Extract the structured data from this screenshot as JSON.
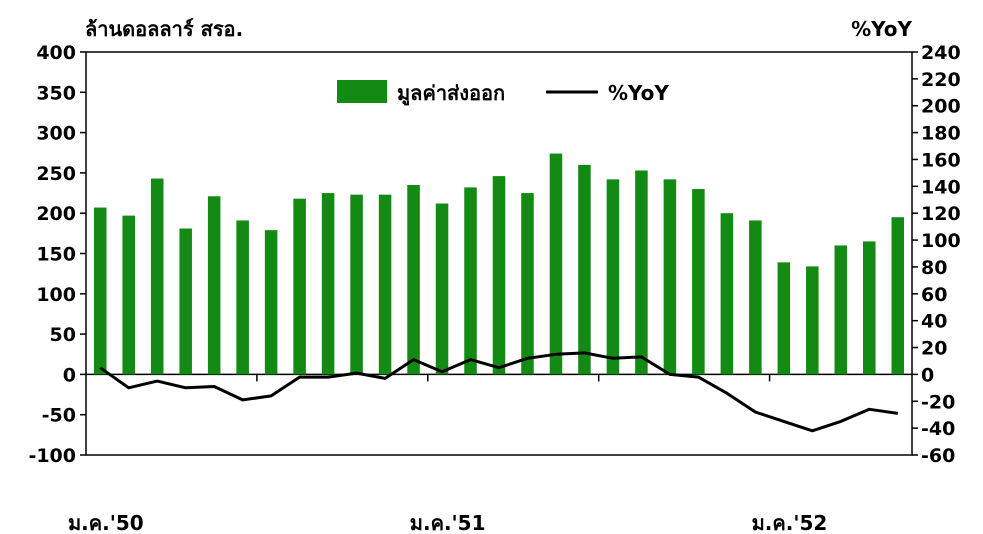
{
  "chart_data": {
    "type": "bar",
    "left_axis_unit": "ล้านดอลลาร์ สรอ.",
    "right_axis_unit": "%YoY",
    "left_ylim": [
      -100,
      400
    ],
    "left_ticks": [
      400,
      350,
      300,
      250,
      200,
      150,
      100,
      50,
      0,
      -50,
      -100
    ],
    "right_ylim": [
      -60,
      240
    ],
    "right_ticks": [
      240,
      220,
      200,
      180,
      160,
      140,
      120,
      100,
      80,
      60,
      40,
      20,
      0,
      -20,
      -40,
      -60
    ],
    "x_labels": [
      {
        "label": "ม.ค.'50",
        "index": 0
      },
      {
        "label": "ม.ค.'51",
        "index": 12
      },
      {
        "label": "ม.ค.'52",
        "index": 24
      }
    ],
    "legend_position": "top-center",
    "series": [
      {
        "name": "มูลค่าส่งออก",
        "type": "bar",
        "axis": "left",
        "color": "#138a13",
        "values": [
          207,
          197,
          243,
          181,
          221,
          191,
          179,
          218,
          225,
          223,
          223,
          235,
          212,
          232,
          246,
          225,
          274,
          260,
          242,
          253,
          242,
          230,
          200,
          191,
          139,
          134,
          160,
          165,
          195
        ]
      },
      {
        "name": "%YoY",
        "type": "line",
        "axis": "right",
        "color": "#000000",
        "values": [
          5,
          -10,
          -5,
          -10,
          -9,
          -19,
          -16,
          -2,
          -2,
          1,
          -3,
          11,
          2,
          11,
          5,
          12,
          15,
          16,
          12,
          13,
          0,
          -2,
          -14,
          -28,
          -35,
          -42,
          -35,
          -26,
          -29
        ]
      }
    ]
  }
}
